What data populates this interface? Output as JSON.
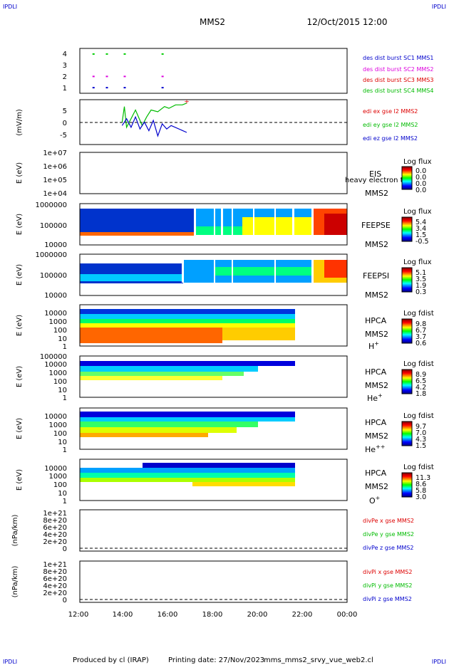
{
  "header": {
    "corner_tl": "IPDLI",
    "corner_tr": "IPDLI",
    "corner_bl": "IPDLI",
    "corner_br": "IPDLI",
    "title": "MMS2",
    "datetime": "12/Oct/2015 12:00"
  },
  "footer": {
    "producer": "Produced by cl (IRAP)",
    "printing": "Printing date: 27/Nov/2023",
    "file": "mms_mms2_srvy_vue_web2.cl"
  },
  "x_axis": {
    "ticks": [
      "12:00",
      "14:00",
      "16:00",
      "18:00",
      "20:00",
      "22:00",
      "00:00"
    ]
  },
  "colors": {
    "mms1": "#0000cc",
    "mms2": "#dd00dd",
    "mms3": "#dd0000",
    "mms4": "#00cc00",
    "red": "#dd0000",
    "green": "#00bb00",
    "blue": "#0000cc"
  },
  "chart_data": [
    {
      "type": "scatter",
      "panel": "burst",
      "ylim": [
        0.5,
        4.5
      ],
      "y_ticks": [
        "4",
        "3",
        "2",
        "1"
      ],
      "x_unit": "hours since 12:00",
      "legend": [
        "des dist burst SC1 MMS1",
        "des dist burst SC2 MMS2",
        "des dist burst SC3 MMS3",
        "des dist burst SC4 MMS4"
      ],
      "series": [
        {
          "name": "des dist burst SC4 MMS4",
          "y": 4,
          "x": [
            0.6,
            1.2,
            2.0,
            3.7
          ]
        },
        {
          "name": "des dist burst SC3 MMS3",
          "y": 3,
          "x": []
        },
        {
          "name": "des dist burst SC2 MMS2",
          "y": 2,
          "x": [
            0.6,
            1.2,
            2.0,
            3.7
          ]
        },
        {
          "name": "des dist burst SC1 MMS1",
          "y": 1,
          "x": [
            0.6,
            1.2,
            2.0,
            3.7
          ]
        }
      ]
    },
    {
      "type": "line",
      "panel": "edi",
      "ylabel": "(mV/m)",
      "ylim": [
        -6,
        7
      ],
      "y_ticks": [
        "5",
        "0",
        "-5"
      ],
      "legend": [
        "edi ex gse l2 MMS2",
        "edi ey gse l2 MMS2",
        "edi ez gse l2 MMS2"
      ],
      "series": [
        {
          "name": "edi ey gse l2 MMS2",
          "x": [
            1.9,
            2.0,
            2.1,
            2.3,
            2.5,
            2.8,
            3.0,
            3.2,
            3.5,
            3.8,
            4.0,
            4.3,
            4.6,
            4.8
          ],
          "y": [
            0.5,
            5.0,
            -1.0,
            1.5,
            4.0,
            -0.5,
            2.0,
            4.0,
            3.5,
            5.0,
            4.5,
            5.5,
            5.5,
            6.0
          ]
        },
        {
          "name": "edi ez gse l2 MMS2",
          "x": [
            1.9,
            2.1,
            2.3,
            2.5,
            2.7,
            2.9,
            3.1,
            3.3,
            3.5,
            3.7,
            3.9,
            4.1,
            4.8
          ],
          "y": [
            -0.5,
            1.5,
            -1.0,
            2.0,
            -1.5,
            0.5,
            -2.0,
            1.0,
            -3.5,
            0.0,
            -1.5,
            -0.5,
            -2.5
          ]
        },
        {
          "name": "edi ex gse l2 MMS2",
          "x": [
            4.8
          ],
          "y": [
            6.5
          ]
        }
      ]
    },
    {
      "type": "heatmap",
      "panel": "EIS",
      "ylabel": "E (eV)",
      "y_ticks": [
        "1e+07",
        "1e+06",
        "1e+05",
        "1e+04"
      ],
      "label_main": "EIS",
      "label_extra": "heavy electron to",
      "label_sc": "MMS2",
      "colorbar_title": "Log flux",
      "colorbar_ticks": [
        "0.0",
        "0.0",
        "0.0",
        "0.0"
      ],
      "values": "empty"
    },
    {
      "type": "heatmap",
      "panel": "FEEPSE",
      "ylabel": "E (eV)",
      "y_ticks": [
        "1000000",
        "100000",
        "10000"
      ],
      "label_main": "FEEPSE",
      "label_sc": "MMS2",
      "colorbar_title": "Log flux",
      "colorbar_ticks": [
        "5.4",
        "3.4",
        "1.5",
        "-0.5"
      ]
    },
    {
      "type": "heatmap",
      "panel": "FEEPSI",
      "ylabel": "E (eV)",
      "y_ticks": [
        "1000000",
        "100000",
        "10000"
      ],
      "label_main": "FEEPSI",
      "label_sc": "MMS2",
      "colorbar_title": "Log flux",
      "colorbar_ticks": [
        "5.1",
        "3.5",
        "1.9",
        "0.3"
      ]
    },
    {
      "type": "heatmap",
      "panel": "HPCA H+",
      "ylabel": "E (eV)",
      "y_ticks": [
        "10000",
        "1000",
        "100",
        "10",
        "1"
      ],
      "label_main": "HPCA",
      "label_sc": "MMS2",
      "species": "H",
      "species_sup": "+",
      "colorbar_title": "Log fdist",
      "colorbar_ticks": [
        "9.8",
        "6.7",
        "3.7",
        "0.6"
      ]
    },
    {
      "type": "heatmap",
      "panel": "HPCA He+",
      "ylabel": "E (eV)",
      "y_ticks": [
        "100000",
        "10000",
        "1000",
        "100",
        "10",
        "1"
      ],
      "label_main": "HPCA",
      "label_sc": "MMS2",
      "species": "He",
      "species_sup": "+",
      "colorbar_title": "Log fdist",
      "colorbar_ticks": [
        "8.9",
        "6.5",
        "4.2",
        "1.8"
      ]
    },
    {
      "type": "heatmap",
      "panel": "HPCA He++",
      "ylabel": "E (eV)",
      "y_ticks": [
        "10000",
        "1000",
        "100",
        "10",
        "1"
      ],
      "label_main": "HPCA",
      "label_sc": "MMS2",
      "species": "He",
      "species_sup": "++",
      "colorbar_title": "Log fdist",
      "colorbar_ticks": [
        "9.7",
        "7.0",
        "4.3",
        "1.5"
      ]
    },
    {
      "type": "heatmap",
      "panel": "HPCA O+",
      "ylabel": "E (eV)",
      "y_ticks": [
        "10000",
        "1000",
        "100",
        "10",
        "1"
      ],
      "label_main": "HPCA",
      "label_sc": "MMS2",
      "species": "O",
      "species_sup": "+",
      "colorbar_title": "Log fdist",
      "colorbar_ticks": [
        "11.3",
        "8.6",
        "5.8",
        "3.0"
      ]
    },
    {
      "type": "line",
      "panel": "divPe",
      "ylabel": "(nPa/km)",
      "y_ticks": [
        "1e+21",
        "8e+20",
        "6e+20",
        "4e+20",
        "2e+20",
        "0"
      ],
      "legend": [
        "divPe x gse MMS2",
        "divPe y gse MMS2",
        "divPe z gse MMS2"
      ],
      "values": "empty"
    },
    {
      "type": "line",
      "panel": "divPi",
      "ylabel": "(nPa/km)",
      "y_ticks": [
        "1e+21",
        "8e+20",
        "6e+20",
        "4e+20",
        "2e+20",
        "0"
      ],
      "legend": [
        "divPi x gse MMS2",
        "divPi y gse MMS2",
        "divPi z gse MMS2"
      ],
      "values": "empty"
    }
  ]
}
